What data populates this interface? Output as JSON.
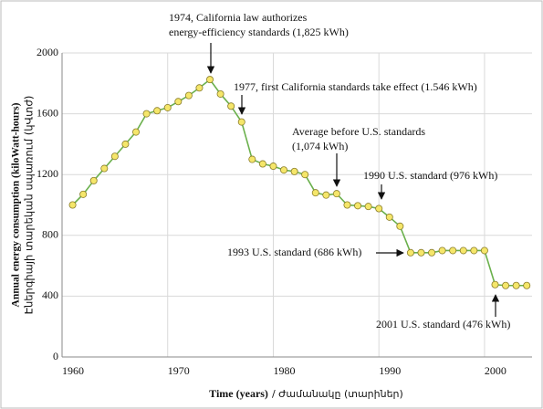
{
  "chart_data": {
    "type": "line",
    "y_label": [
      "Annual energy consumption (kiloWatt-hours)",
      "Էներգիայի տարեկան սպառում (կՎտժ)"
    ],
    "x_label": [
      "Time (years)",
      "/ Ժամանակը (տարիներ)"
    ],
    "x": [
      1961,
      1962,
      1963,
      1964,
      1965,
      1966,
      1967,
      1968,
      1969,
      1970,
      1971,
      1972,
      1973,
      1974,
      1975,
      1976,
      1977,
      1978,
      1979,
      1980,
      1981,
      1982,
      1983,
      1984,
      1985,
      1986,
      1987,
      1988,
      1989,
      1990,
      1991,
      1992,
      1993,
      1994,
      1995,
      1996,
      1997,
      1998,
      1999,
      2000,
      2001,
      2002,
      2003,
      2004
    ],
    "series": [
      {
        "color": "#6ab04c",
        "values": [
          1000,
          1070,
          1160,
          1240,
          1320,
          1400,
          1480,
          1600,
          1620,
          1640,
          1680,
          1720,
          1770,
          1825,
          1730,
          1650,
          1546,
          1300,
          1270,
          1255,
          1230,
          1220,
          1200,
          1080,
          1065,
          1074,
          1000,
          995,
          990,
          976,
          920,
          860,
          686,
          686,
          686,
          700,
          700,
          700,
          700,
          700,
          476,
          470,
          470,
          470
        ]
      }
    ],
    "marker_color": "#f5e66a",
    "xlim": [
      1960,
      2004.5
    ],
    "xticks": [
      1960,
      1970,
      1980,
      1990,
      2000
    ],
    "ylim": [
      0,
      2000
    ],
    "yticks": [
      0,
      400,
      800,
      1200,
      1600,
      2000
    ],
    "grid": true,
    "annotations": [
      [
        "1974, California law authorizes",
        "energy-efficiency standards (1,825 kWh)"
      ],
      [
        "1977, first California standards take effect (1.546 kWh)"
      ],
      [
        "Average before U.S. standards",
        "(1,074 kWh)"
      ],
      [
        "1990 U.S. standard (976 kWh)"
      ],
      [
        "1993 U.S. standard (686 kWh)"
      ],
      [
        "2001 U.S. standard (476 kWh)"
      ]
    ]
  }
}
